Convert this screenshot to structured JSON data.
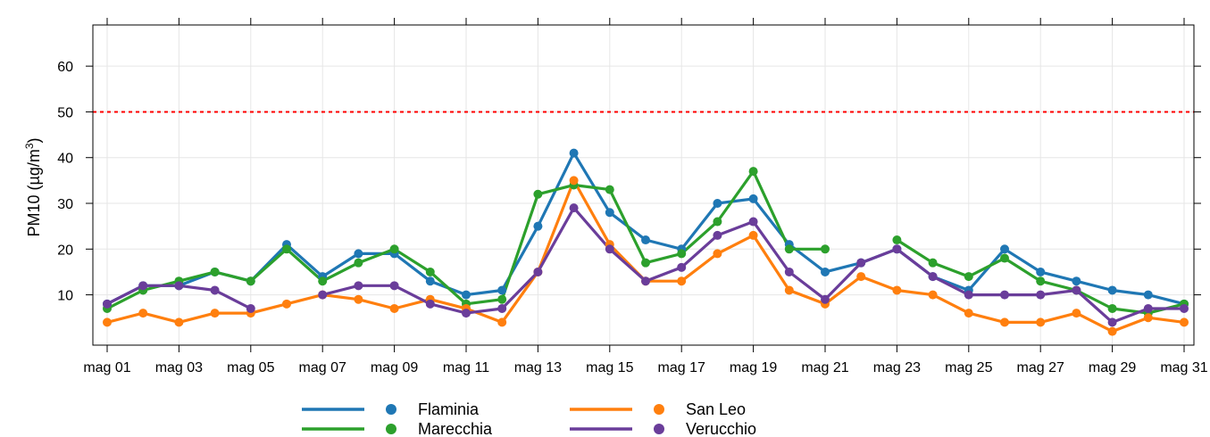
{
  "chart_data": {
    "type": "line",
    "ylabel": "PM10 (µg/m³)",
    "ylabel_parts": {
      "main": "PM10 (µg/m",
      "sup": "3",
      "end": ")"
    },
    "ylim": [
      -1,
      69
    ],
    "yticks": [
      10,
      20,
      30,
      40,
      50,
      60
    ],
    "threshold": {
      "value": 50,
      "color": "#ff0000",
      "style": "dashed"
    },
    "x": [
      "mag 01",
      "mag 02",
      "mag 03",
      "mag 04",
      "mag 05",
      "mag 06",
      "mag 07",
      "mag 08",
      "mag 09",
      "mag 10",
      "mag 11",
      "mag 12",
      "mag 13",
      "mag 14",
      "mag 15",
      "mag 16",
      "mag 17",
      "mag 18",
      "mag 19",
      "mag 20",
      "mag 21",
      "mag 22",
      "mag 23",
      "mag 24",
      "mag 25",
      "mag 26",
      "mag 27",
      "mag 28",
      "mag 29",
      "mag 30",
      "mag 31"
    ],
    "xtick_labels": [
      "mag 01",
      "mag 03",
      "mag 05",
      "mag 07",
      "mag 09",
      "mag 11",
      "mag 13",
      "mag 15",
      "mag 17",
      "mag 19",
      "mag 21",
      "mag 23",
      "mag 25",
      "mag 27",
      "mag 29",
      "mag 31"
    ],
    "grid": true,
    "legend_position": "bottom",
    "series": [
      {
        "name": "Flaminia",
        "color": "#1f77b4",
        "values": [
          8,
          12,
          12,
          15,
          13,
          21,
          14,
          19,
          19,
          13,
          10,
          11,
          25,
          41,
          28,
          22,
          20,
          30,
          31,
          21,
          15,
          17,
          20,
          14,
          11,
          20,
          15,
          13,
          11,
          10,
          8
        ]
      },
      {
        "name": "Marecchia",
        "color": "#2ca02c",
        "values": [
          7,
          11,
          13,
          15,
          13,
          20,
          13,
          17,
          20,
          15,
          8,
          9,
          32,
          34,
          33,
          17,
          19,
          26,
          37,
          20,
          20,
          null,
          22,
          17,
          14,
          18,
          13,
          11,
          7,
          6,
          8
        ]
      },
      {
        "name": "San Leo",
        "color": "#ff7f0e",
        "values": [
          4,
          6,
          4,
          6,
          6,
          8,
          10,
          9,
          7,
          9,
          7,
          4,
          15,
          35,
          21,
          13,
          13,
          19,
          23,
          11,
          8,
          14,
          11,
          10,
          6,
          4,
          4,
          6,
          2,
          5,
          4
        ]
      },
      {
        "name": "Verucchio",
        "color": "#6a3d9a",
        "values": [
          8,
          12,
          12,
          11,
          7,
          null,
          10,
          12,
          12,
          8,
          6,
          7,
          15,
          29,
          20,
          13,
          16,
          23,
          26,
          15,
          9,
          17,
          20,
          14,
          10,
          10,
          10,
          11,
          4,
          7,
          7
        ]
      }
    ]
  }
}
